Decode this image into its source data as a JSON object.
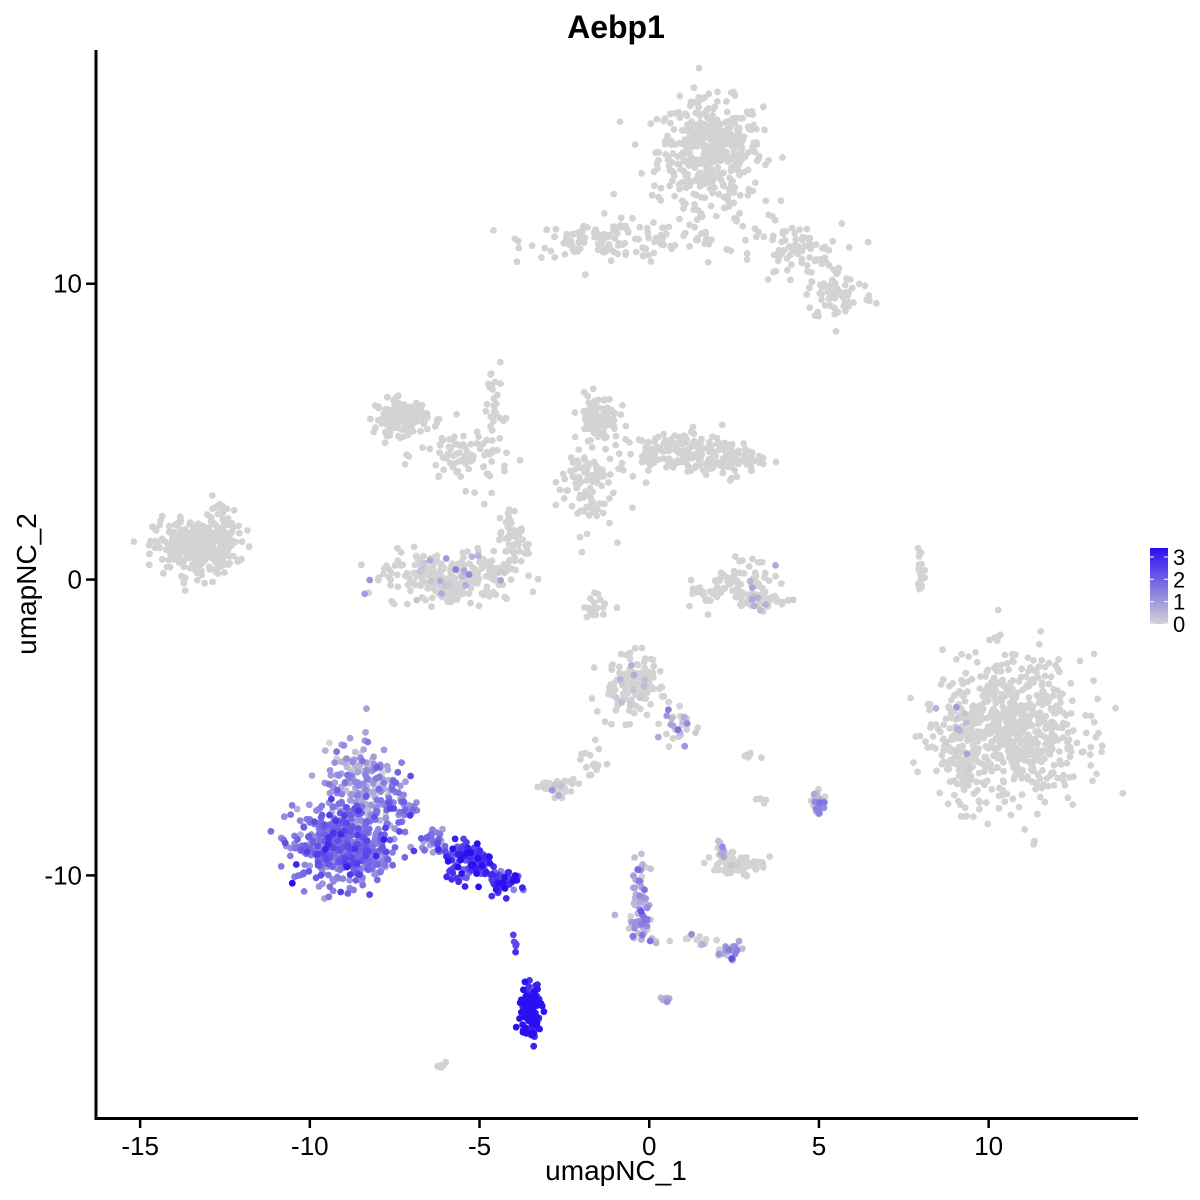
{
  "chart_data": {
    "type": "scatter",
    "title": "Aebp1",
    "xlabel": "umapNC_1",
    "ylabel": "umapNC_2",
    "xlim": [
      -16.3,
      14.4
    ],
    "ylim": [
      -18.2,
      17.9
    ],
    "x_ticks": [
      -15,
      -10,
      -5,
      0,
      5,
      10
    ],
    "x_tick_labels": [
      "-15",
      "-10",
      "-5",
      "0",
      "5",
      "10"
    ],
    "y_ticks": [
      -10,
      0,
      10
    ],
    "y_tick_labels": [
      "-10",
      "0",
      "10"
    ],
    "legend": {
      "placement": "right",
      "labels": [
        "3",
        "2",
        "1",
        "0"
      ],
      "values": [
        3,
        2,
        1,
        0
      ],
      "color_low": "#D3D3D3",
      "color_high": "#2A0FF2"
    },
    "grid": false,
    "point_color_scale": {
      "min": 0,
      "max": 3.4
    },
    "clusters": [
      {
        "cx": 1.8,
        "cy": 14.5,
        "sx": 0.9,
        "sy": 1.0,
        "n": 420,
        "expr": 0
      },
      {
        "cx": -1.2,
        "cy": 11.5,
        "sx": 1.4,
        "sy": 0.35,
        "n": 110,
        "expr": 0
      },
      {
        "cx": 4.3,
        "cy": 11.0,
        "sx": 0.8,
        "sy": 0.6,
        "n": 80,
        "expr": 0
      },
      {
        "cx": 5.6,
        "cy": 9.6,
        "sx": 0.6,
        "sy": 0.5,
        "n": 70,
        "expr": 0
      },
      {
        "cx": 1.4,
        "cy": 12.2,
        "sx": 1.1,
        "sy": 0.9,
        "n": 60,
        "expr": 0
      },
      {
        "cx": -13.4,
        "cy": 1.1,
        "sx": 0.7,
        "sy": 0.55,
        "n": 300,
        "expr": 0
      },
      {
        "cx": -12.4,
        "cy": 1.6,
        "sx": 0.4,
        "sy": 0.7,
        "n": 40,
        "expr": 0
      },
      {
        "cx": -7.3,
        "cy": 5.5,
        "sx": 0.45,
        "sy": 0.35,
        "n": 130,
        "expr": 0
      },
      {
        "cx": -5.4,
        "cy": 4.2,
        "sx": 0.8,
        "sy": 0.6,
        "n": 90,
        "expr": 0
      },
      {
        "cx": -4.6,
        "cy": 5.8,
        "sx": 0.15,
        "sy": 1.0,
        "n": 25,
        "expr": 0
      },
      {
        "cx": -6.0,
        "cy": 0.1,
        "sx": 1.1,
        "sy": 0.45,
        "n": 260,
        "expr": 0.05
      },
      {
        "cx": -4.0,
        "cy": 1.3,
        "sx": 0.3,
        "sy": 0.7,
        "n": 60,
        "expr": 0
      },
      {
        "cx": -1.5,
        "cy": 5.5,
        "sx": 0.35,
        "sy": 0.45,
        "n": 100,
        "expr": 0
      },
      {
        "cx": 0.8,
        "cy": 4.3,
        "sx": 1.0,
        "sy": 0.4,
        "n": 140,
        "expr": 0
      },
      {
        "cx": 2.3,
        "cy": 4.1,
        "sx": 0.6,
        "sy": 0.35,
        "n": 80,
        "expr": 0
      },
      {
        "cx": -1.9,
        "cy": 3.2,
        "sx": 0.5,
        "sy": 0.9,
        "n": 90,
        "expr": 0
      },
      {
        "cx": 2.9,
        "cy": 0.0,
        "sx": 0.5,
        "sy": 0.4,
        "n": 50,
        "expr": 0.05
      },
      {
        "cx": 3.3,
        "cy": -0.7,
        "sx": 0.5,
        "sy": 0.2,
        "n": 50,
        "expr": 0.03
      },
      {
        "cx": 1.7,
        "cy": -0.4,
        "sx": 0.4,
        "sy": 0.3,
        "n": 25,
        "expr": 0
      },
      {
        "cx": 8.0,
        "cy": 0.3,
        "sx": 0.08,
        "sy": 0.5,
        "n": 20,
        "expr": 0
      },
      {
        "cx": -1.5,
        "cy": -0.9,
        "sx": 0.25,
        "sy": 0.25,
        "n": 20,
        "expr": 0
      },
      {
        "cx": 10.7,
        "cy": -5.1,
        "sx": 1.2,
        "sy": 1.45,
        "n": 650,
        "expr": 0
      },
      {
        "cx": 9.0,
        "cy": -5.6,
        "sx": 0.4,
        "sy": 1.0,
        "n": 90,
        "expr": 0.02
      },
      {
        "cx": -0.5,
        "cy": -3.6,
        "sx": 0.55,
        "sy": 0.55,
        "n": 140,
        "expr": 0.08
      },
      {
        "cx": 0.8,
        "cy": -5.0,
        "sx": 0.3,
        "sy": 0.35,
        "n": 30,
        "expr": 0.3
      },
      {
        "cx": -2.7,
        "cy": -7.0,
        "sx": 0.3,
        "sy": 0.2,
        "n": 45,
        "expr": 0.05
      },
      {
        "cx": -1.7,
        "cy": -6.1,
        "sx": 0.3,
        "sy": 0.3,
        "n": 15,
        "expr": 0
      },
      {
        "cx": 2.6,
        "cy": -9.6,
        "sx": 0.45,
        "sy": 0.2,
        "n": 70,
        "expr": 0.15
      },
      {
        "cx": 2.1,
        "cy": -9.1,
        "sx": 0.1,
        "sy": 0.2,
        "n": 12,
        "expr": 0.4
      },
      {
        "cx": 5.0,
        "cy": -7.5,
        "sx": 0.15,
        "sy": 0.25,
        "n": 25,
        "expr": 0.7
      },
      {
        "cx": 3.3,
        "cy": -7.5,
        "sx": 0.12,
        "sy": 0.1,
        "n": 6,
        "expr": 0
      },
      {
        "cx": 3.0,
        "cy": -6.0,
        "sx": 0.2,
        "sy": 0.08,
        "n": 6,
        "expr": 0
      },
      {
        "cx": -0.3,
        "cy": -10.2,
        "sx": 0.15,
        "sy": 0.6,
        "n": 30,
        "expr": 0.5
      },
      {
        "cx": -0.2,
        "cy": -11.6,
        "sx": 0.2,
        "sy": 0.4,
        "n": 45,
        "expr": 0.8
      },
      {
        "cx": 1.3,
        "cy": -12.2,
        "sx": 0.45,
        "sy": 0.1,
        "n": 15,
        "expr": 0.1
      },
      {
        "cx": 2.4,
        "cy": -12.6,
        "sx": 0.2,
        "sy": 0.2,
        "n": 30,
        "expr": 0.6
      },
      {
        "cx": 0.5,
        "cy": -14.2,
        "sx": 0.1,
        "sy": 0.08,
        "n": 8,
        "expr": 0.5
      },
      {
        "cx": -9.0,
        "cy": -9.0,
        "sx": 0.85,
        "sy": 0.75,
        "n": 520,
        "expr": 1.6
      },
      {
        "cx": -8.5,
        "cy": -6.8,
        "sx": 0.55,
        "sy": 0.8,
        "n": 160,
        "expr": 0.8
      },
      {
        "cx": -7.4,
        "cy": -7.5,
        "sx": 0.3,
        "sy": 0.6,
        "n": 50,
        "expr": 1.6
      },
      {
        "cx": -5.3,
        "cy": -9.5,
        "sx": 0.45,
        "sy": 0.35,
        "n": 110,
        "expr": 2.6
      },
      {
        "cx": -4.3,
        "cy": -10.2,
        "sx": 0.3,
        "sy": 0.25,
        "n": 50,
        "expr": 2.7
      },
      {
        "cx": -6.3,
        "cy": -8.9,
        "sx": 0.3,
        "sy": 0.2,
        "n": 30,
        "expr": 1.5
      },
      {
        "cx": -3.5,
        "cy": -14.6,
        "sx": 0.18,
        "sy": 0.55,
        "n": 110,
        "expr": 3.2
      },
      {
        "cx": -3.95,
        "cy": -12.3,
        "sx": 0.05,
        "sy": 0.3,
        "n": 5,
        "expr": 2.6
      },
      {
        "cx": -6.1,
        "cy": -16.4,
        "sx": 0.12,
        "sy": 0.08,
        "n": 8,
        "expr": 0
      }
    ]
  }
}
